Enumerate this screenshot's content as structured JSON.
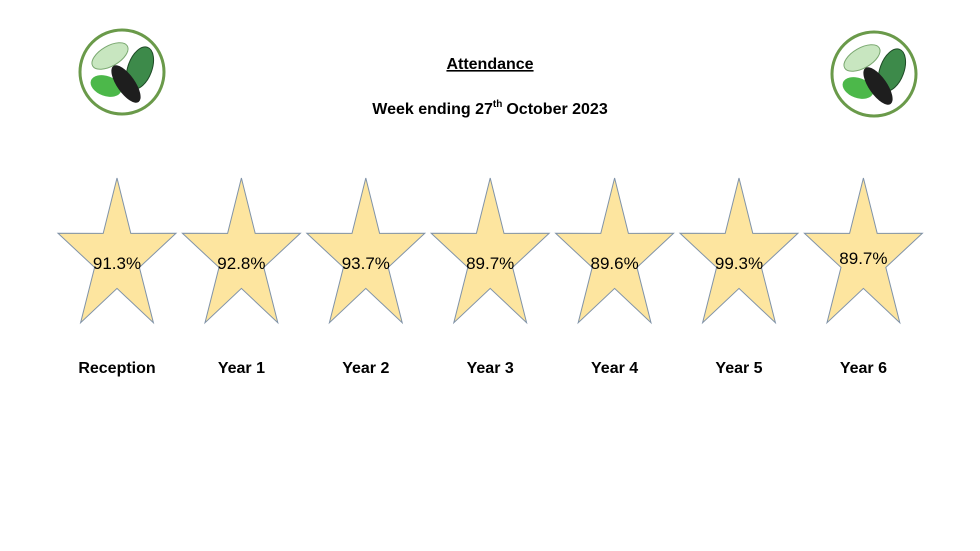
{
  "header": {
    "title": "Attendance",
    "subtitle": {
      "prefix": "Week ending 27",
      "superscript": "th",
      "suffix": "October 2023"
    }
  },
  "classes": [
    {
      "name": "Reception",
      "attendance": "91.3%"
    },
    {
      "name": "Year 1",
      "attendance": "92.8%"
    },
    {
      "name": "Year 2",
      "attendance": "93.7%"
    },
    {
      "name": "Year 3",
      "attendance": "89.7%"
    },
    {
      "name": "Year 4",
      "attendance": "89.6%"
    },
    {
      "name": "Year 5",
      "attendance": "99.3%"
    },
    {
      "name": "Year 6",
      "attendance": "89.7%"
    }
  ]
}
